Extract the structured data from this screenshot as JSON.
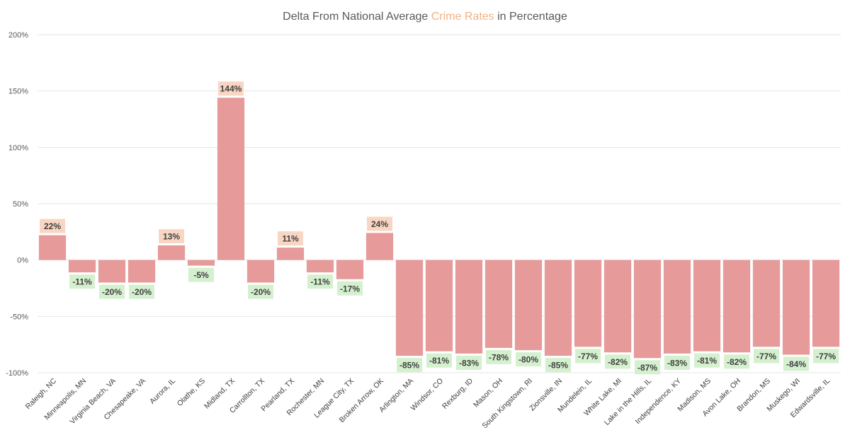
{
  "chart_data": {
    "type": "bar",
    "title": {
      "prefix": "Delta From National Average ",
      "highlight": "Crime Rates",
      "suffix": " in Percentage"
    },
    "xlabel": "",
    "ylabel": "",
    "ylim": [
      -100,
      200
    ],
    "yticks": [
      200,
      150,
      100,
      50,
      0,
      -50,
      -100
    ],
    "ytick_labels": [
      "200%",
      "150%",
      "100%",
      "50%",
      "0%",
      "-50%",
      "-100%"
    ],
    "grid": true,
    "value_suffix": "%",
    "categories": [
      "Raleigh, NC",
      "Minneapolis, MN",
      "Virginia Beach, VA",
      "Chesapeake, VA",
      "Aurora, IL",
      "Olathe, KS",
      "Midland, TX",
      "Carrollton, TX",
      "Pearland, TX",
      "Rochester, MN",
      "League City, TX",
      "Broken Arrow, OK",
      "Arlington, MA",
      "Windsor, CO",
      "Rexburg, ID",
      "Mason, OH",
      "South Kingstown, RI",
      "Zionsville, IN",
      "Mundelein, IL",
      "White Lake, MI",
      "Lake in the Hills, IL",
      "Independence, KY",
      "Madison, MS",
      "Avon Lake, OH",
      "Brandon, MS",
      "Muskego, WI",
      "Edwardsville, IL"
    ],
    "values": [
      22,
      -11,
      -20,
      -20,
      13,
      -5,
      144,
      -20,
      11,
      -11,
      -17,
      24,
      -85,
      -81,
      -83,
      -78,
      -80,
      -85,
      -77,
      -82,
      -87,
      -83,
      -81,
      -82,
      -77,
      -84,
      -77
    ],
    "colors": {
      "bar": "#e69a9a",
      "positive_label_bg": "#f9d6c4",
      "negative_label_bg": "#d5f0cf",
      "grid": "#e6e6e6",
      "text": "#595959"
    }
  }
}
